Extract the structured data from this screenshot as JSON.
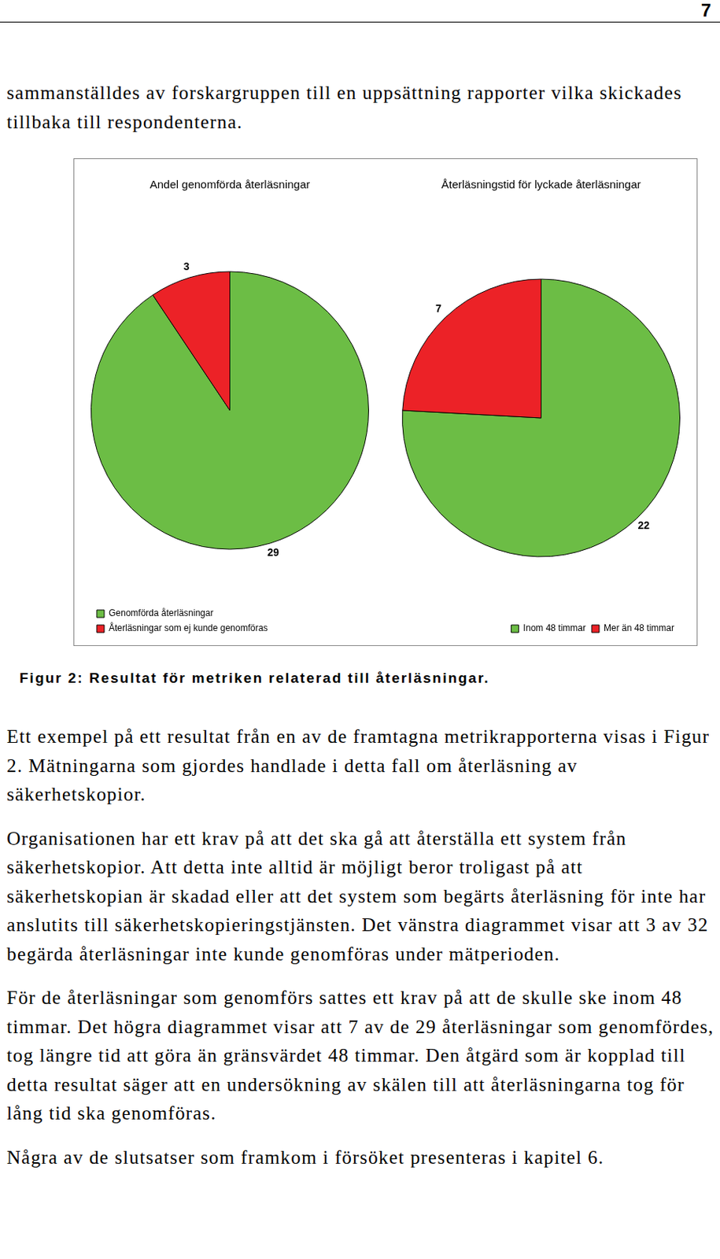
{
  "page_number": "7",
  "text_before": [
    "sammanställdes av forskargruppen till en uppsättning rapporter vilka skickades tillbaka till respondenterna."
  ],
  "chart_data": [
    {
      "type": "pie",
      "title": "Andel genomförda återläsningar",
      "categories": [
        "Genomförda återläsningar",
        "Återläsningar som ej kunde genomföras"
      ],
      "values": [
        29,
        3
      ],
      "colors": [
        "#6cbd45",
        "#ec2227"
      ],
      "data_labels": true,
      "legend": "bottom left"
    },
    {
      "type": "pie",
      "title": "Återläsningstid för lyckade återläsningar",
      "categories": [
        "Inom 48 timmar",
        "Mer än 48 timmar"
      ],
      "values": [
        22,
        7
      ],
      "colors": [
        "#6cbd45",
        "#ec2227"
      ],
      "data_labels": true,
      "legend": "bottom right"
    }
  ],
  "caption": "Figur 2: Resultat för metriken relaterad till återläsningar.",
  "text_after": [
    "Ett exempel på ett resultat från en av de framtagna metrikrapporterna visas i Figur 2. Mätningarna som gjordes handlade i detta fall om återläsning av säkerhetskopior.",
    "Organisationen har ett krav på att det ska gå att återställa ett system från säkerhetskopior. Att detta inte alltid är möjligt beror troligast på att säkerhetskopian är skadad eller att det system som begärts återläsning för inte har anslutits till säkerhetskopieringstjänsten. Det vänstra diagrammet visar att 3 av 32 begärda återläsningar inte kunde genomföras under mätperioden.",
    "För de återläsningar som genomförs sattes ett krav på att de skulle ske inom 48 timmar. Det högra diagrammet visar att 7 av de 29 återläsningar som genomfördes, tog längre tid att göra än gränsvärdet 48 timmar. Den åtgärd som är kopplad till detta resultat säger att en undersökning av skälen till att återläsningarna tog för lång tid ska genomföras.",
    "Några av de slutsatser som framkom i försöket presenteras i kapitel 6."
  ]
}
